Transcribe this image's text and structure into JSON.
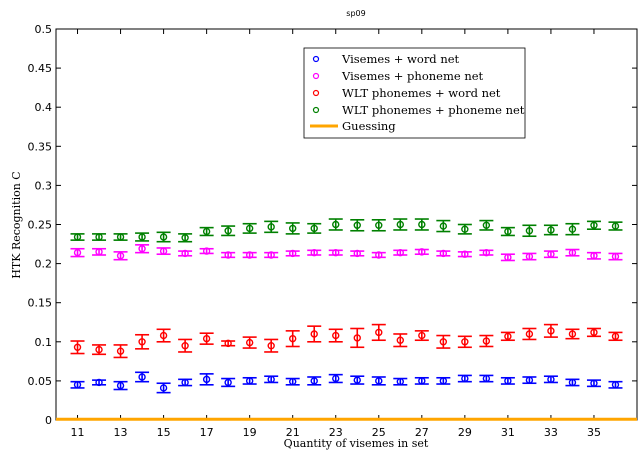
{
  "chart_data": {
    "type": "scatter",
    "title": "sp09",
    "xlabel": "Quantity of visemes in set",
    "ylabel": "HTK Recognition C",
    "xlim": [
      10,
      37
    ],
    "ylim": [
      0,
      0.5
    ],
    "xticks": [
      11,
      13,
      15,
      17,
      19,
      21,
      23,
      25,
      27,
      29,
      31,
      33,
      35
    ],
    "yticks": [
      0,
      0.05,
      0.1,
      0.15,
      0.2,
      0.25,
      0.3,
      0.35,
      0.4,
      0.45,
      0.5
    ],
    "ytick_labels": [
      "0",
      "0.05",
      "0.1",
      "0.15",
      "0.2",
      "0.25",
      "0.3",
      "0.35",
      "0.4",
      "0.45",
      "0.5"
    ],
    "legend_position": "top-right",
    "grid": false,
    "x": [
      11,
      12,
      13,
      14,
      15,
      16,
      17,
      18,
      19,
      20,
      21,
      22,
      23,
      24,
      25,
      26,
      27,
      28,
      29,
      30,
      31,
      32,
      33,
      34,
      35,
      36
    ],
    "series": [
      {
        "name": "Visemes + word net",
        "color": "#0000ff",
        "values": [
          0.045,
          0.048,
          0.044,
          0.055,
          0.041,
          0.048,
          0.052,
          0.048,
          0.05,
          0.052,
          0.049,
          0.05,
          0.053,
          0.051,
          0.05,
          0.049,
          0.05,
          0.05,
          0.053,
          0.053,
          0.05,
          0.051,
          0.052,
          0.048,
          0.047,
          0.045
        ],
        "errors": [
          0.004,
          0.003,
          0.005,
          0.006,
          0.006,
          0.004,
          0.007,
          0.005,
          0.004,
          0.004,
          0.004,
          0.005,
          0.005,
          0.005,
          0.005,
          0.004,
          0.004,
          0.004,
          0.004,
          0.004,
          0.004,
          0.004,
          0.004,
          0.004,
          0.004,
          0.004
        ]
      },
      {
        "name": "Visemes + phoneme net",
        "color": "#ff00ff",
        "values": [
          0.214,
          0.215,
          0.21,
          0.219,
          0.216,
          0.213,
          0.216,
          0.211,
          0.211,
          0.211,
          0.213,
          0.214,
          0.214,
          0.213,
          0.211,
          0.214,
          0.215,
          0.213,
          0.212,
          0.214,
          0.208,
          0.209,
          0.212,
          0.214,
          0.21,
          0.209
        ],
        "errors": [
          0.005,
          0.004,
          0.005,
          0.005,
          0.004,
          0.003,
          0.003,
          0.003,
          0.003,
          0.003,
          0.003,
          0.003,
          0.003,
          0.003,
          0.003,
          0.003,
          0.003,
          0.003,
          0.003,
          0.003,
          0.004,
          0.004,
          0.004,
          0.004,
          0.004,
          0.004
        ]
      },
      {
        "name": "WLT phonemes + word net",
        "color": "#ff0000",
        "values": [
          0.093,
          0.09,
          0.088,
          0.1,
          0.108,
          0.095,
          0.104,
          0.098,
          0.099,
          0.095,
          0.104,
          0.11,
          0.108,
          0.105,
          0.112,
          0.102,
          0.108,
          0.1,
          0.1,
          0.101,
          0.107,
          0.11,
          0.114,
          0.11,
          0.112,
          0.107
        ],
        "errors": [
          0.008,
          0.006,
          0.008,
          0.009,
          0.008,
          0.008,
          0.007,
          0.003,
          0.007,
          0.008,
          0.01,
          0.01,
          0.008,
          0.012,
          0.01,
          0.008,
          0.006,
          0.008,
          0.007,
          0.007,
          0.005,
          0.007,
          0.008,
          0.006,
          0.005,
          0.005
        ]
      },
      {
        "name": "WLT phonemes + phoneme net",
        "color": "#008000",
        "values": [
          0.234,
          0.234,
          0.234,
          0.234,
          0.234,
          0.233,
          0.241,
          0.242,
          0.245,
          0.247,
          0.245,
          0.245,
          0.25,
          0.249,
          0.249,
          0.25,
          0.25,
          0.248,
          0.244,
          0.249,
          0.241,
          0.242,
          0.243,
          0.244,
          0.249,
          0.248
        ],
        "errors": [
          0.004,
          0.004,
          0.004,
          0.005,
          0.006,
          0.005,
          0.005,
          0.006,
          0.006,
          0.007,
          0.007,
          0.006,
          0.007,
          0.007,
          0.007,
          0.007,
          0.007,
          0.007,
          0.006,
          0.006,
          0.005,
          0.007,
          0.006,
          0.007,
          0.005,
          0.005
        ]
      }
    ],
    "reference_line": {
      "name": "Guessing",
      "color": "#ffa500",
      "value": 0.001
    }
  }
}
